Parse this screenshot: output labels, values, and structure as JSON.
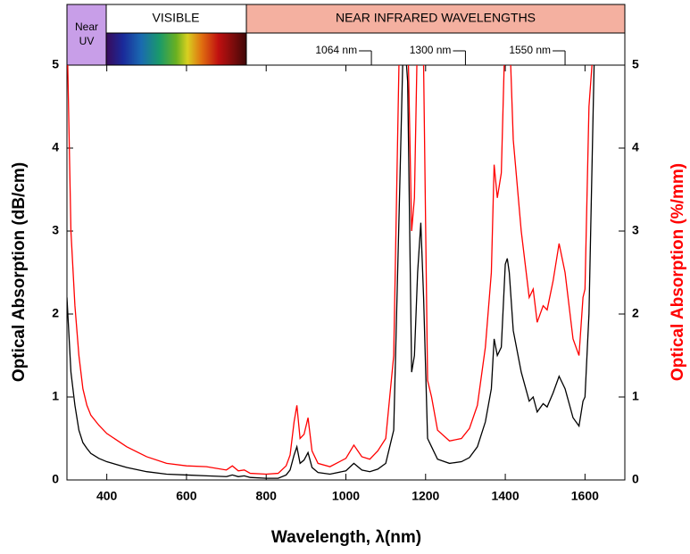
{
  "chart_data": {
    "type": "line",
    "header": {
      "near_uv": [
        "Near",
        "UV"
      ],
      "visible": "VISIBLE",
      "near_ir": "NEAR INFRARED WAVELENGTHS"
    },
    "markers": [
      {
        "value": 1064,
        "label": "1064 nm"
      },
      {
        "value": 1300,
        "label": "1300 nm"
      },
      {
        "value": 1550,
        "label": "1550 nm"
      }
    ],
    "x_label": "Wavelength, λ(nm)",
    "y_label": "Optical Absorption (dB/cm)",
    "y2_label": "Optical Absorption (%/mm)",
    "xlim": [
      300,
      1700
    ],
    "xticks": [
      400,
      600,
      800,
      1000,
      1200,
      1400,
      1600
    ],
    "ylim": [
      0,
      5
    ],
    "yticks": [
      0,
      1,
      2,
      3,
      4,
      5
    ],
    "y2lim": [
      0,
      5
    ],
    "y2ticks": [
      0,
      1,
      2,
      3,
      4,
      5
    ],
    "x": [
      300,
      310,
      320,
      330,
      340,
      350,
      360,
      380,
      400,
      450,
      500,
      550,
      600,
      650,
      700,
      715,
      730,
      745,
      760,
      800,
      830,
      850,
      860,
      870,
      877,
      885,
      895,
      905,
      915,
      930,
      960,
      1000,
      1020,
      1040,
      1060,
      1080,
      1100,
      1120,
      1135,
      1145,
      1155,
      1165,
      1172,
      1180,
      1188,
      1195,
      1205,
      1215,
      1230,
      1260,
      1290,
      1310,
      1330,
      1350,
      1365,
      1372,
      1380,
      1390,
      1400,
      1405,
      1410,
      1420,
      1440,
      1460,
      1470,
      1480,
      1495,
      1505,
      1520,
      1535,
      1550,
      1570,
      1585,
      1595,
      1600,
      1610,
      1625
    ],
    "series": [
      {
        "color": "#000000",
        "values": [
          2.2,
          1.3,
          0.9,
          0.6,
          0.45,
          0.38,
          0.32,
          0.26,
          0.22,
          0.15,
          0.1,
          0.07,
          0.06,
          0.05,
          0.04,
          0.06,
          0.04,
          0.05,
          0.03,
          0.02,
          0.02,
          0.06,
          0.12,
          0.3,
          0.4,
          0.2,
          0.24,
          0.33,
          0.15,
          0.09,
          0.07,
          0.11,
          0.2,
          0.12,
          0.1,
          0.13,
          0.2,
          0.6,
          3.5,
          5.5,
          4.8,
          1.3,
          1.5,
          2.5,
          3.1,
          2.2,
          0.5,
          0.4,
          0.25,
          0.2,
          0.22,
          0.27,
          0.4,
          0.7,
          1.1,
          1.7,
          1.5,
          1.6,
          2.6,
          2.67,
          2.5,
          1.8,
          1.3,
          0.95,
          1.0,
          0.82,
          0.92,
          0.88,
          1.05,
          1.25,
          1.1,
          0.75,
          0.65,
          0.95,
          1.0,
          2.0,
          5.5
        ]
      },
      {
        "color": "#ff0000",
        "axis": "y2",
        "values": [
          5.5,
          3.0,
          2.1,
          1.5,
          1.1,
          0.9,
          0.78,
          0.66,
          0.56,
          0.4,
          0.28,
          0.2,
          0.17,
          0.16,
          0.12,
          0.17,
          0.11,
          0.12,
          0.08,
          0.07,
          0.08,
          0.17,
          0.3,
          0.7,
          0.9,
          0.5,
          0.55,
          0.75,
          0.35,
          0.2,
          0.16,
          0.26,
          0.42,
          0.28,
          0.25,
          0.35,
          0.5,
          1.5,
          5.5,
          5.5,
          5.5,
          3.0,
          3.4,
          5.5,
          5.5,
          5.0,
          1.2,
          1.0,
          0.6,
          0.47,
          0.5,
          0.62,
          0.9,
          1.6,
          2.5,
          3.8,
          3.4,
          3.7,
          5.5,
          5.5,
          5.5,
          4.1,
          3.0,
          2.2,
          2.3,
          1.9,
          2.1,
          2.05,
          2.4,
          2.85,
          2.5,
          1.7,
          1.5,
          2.2,
          2.3,
          4.5,
          5.5
        ]
      }
    ]
  }
}
